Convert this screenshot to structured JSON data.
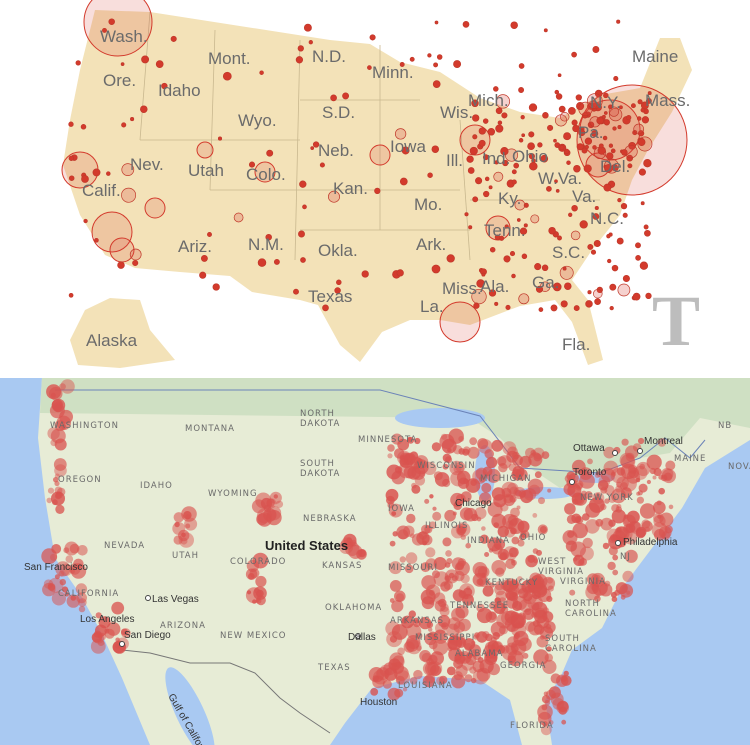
{
  "top_map": {
    "land_color": "#f3e2b8",
    "marker_color": "#d33a2c",
    "logo": "T",
    "state_labels": [
      "Wash.",
      "Mont.",
      "N.D.",
      "Minn.",
      "Maine",
      "Ore.",
      "Idaho",
      "Wyo.",
      "S.D.",
      "Wis.",
      "Mich.",
      "N.Y.",
      "Mass.",
      "Pa.",
      "Nev.",
      "Utah",
      "Colo.",
      "Neb.",
      "Iowa",
      "Ill.",
      "Ind.",
      "Ohio",
      "Del.",
      "W.Va.",
      "Calif.",
      "Kan.",
      "Mo.",
      "Ky.",
      "Va.",
      "N.C.",
      "Tenn.",
      "Ariz.",
      "N.M.",
      "Okla.",
      "Ark.",
      "S.C.",
      "Miss.",
      "Ala.",
      "Ga.",
      "Texas",
      "La.",
      "Fla.",
      "Alaska"
    ]
  },
  "bottom_map": {
    "patch_color": "#d9534f",
    "water_color": "#a9c9f2",
    "state_labels": [
      "WASHINGTON",
      "MONTANA",
      "NORTH DAKOTA",
      "MINNESOTA",
      "OREGON",
      "IDAHO",
      "WYOMING",
      "SOUTH DAKOTA",
      "WISCONSIN",
      "MICHIGAN",
      "IOWA",
      "NEBRASKA",
      "ILLINOIS",
      "INDIANA",
      "OHIO",
      "NEVADA",
      "UTAH",
      "COLORADO",
      "KANSAS",
      "MISSOURI",
      "WEST VIRGINIA",
      "KENTUCKY",
      "VIRGINIA",
      "CALIFORNIA",
      "ARIZONA",
      "NEW MEXICO",
      "OKLAHOMA",
      "ARKANSAS",
      "TENNESSEE",
      "NORTH CAROLINA",
      "MISSISSIPPI",
      "ALABAMA",
      "SOUTH CAROLINA",
      "GEORGIA",
      "TEXAS",
      "LOUISIANA",
      "FLORIDA",
      "NEW YORK",
      "MAINE",
      "NJ",
      "NB",
      "NOVA"
    ],
    "city_labels": [
      "San Francisco",
      "Las Vegas",
      "Los Angeles",
      "San Diego",
      "Dallas",
      "Houston",
      "Chicago",
      "Toronto",
      "Ottawa",
      "Montreal",
      "Philadelphia"
    ],
    "country_label": "United States",
    "water_label": "Gulf of California"
  }
}
